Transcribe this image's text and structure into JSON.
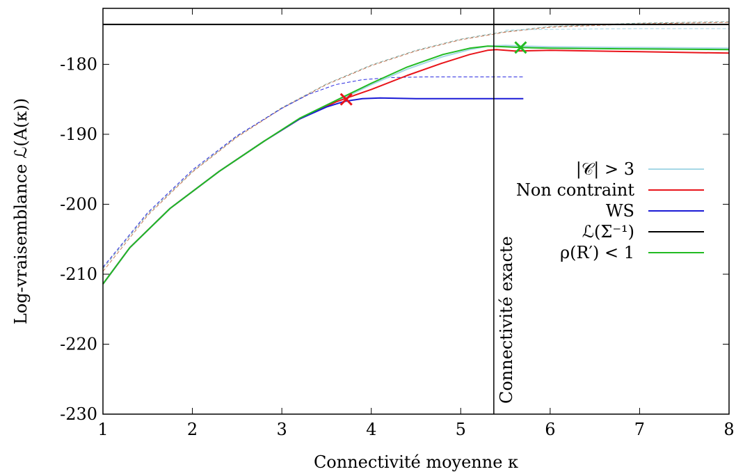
{
  "chart_data": {
    "type": "line",
    "xlabel": "Connectivité moyenne κ",
    "ylabel": "Log-vraisemblance ℒ(A(κ))",
    "xlim": [
      1,
      8
    ],
    "ylim": [
      -230,
      -172
    ],
    "xticks": [
      1,
      2,
      3,
      4,
      5,
      6,
      7,
      8
    ],
    "xtick_labels": [
      "1",
      "2",
      "3",
      "4",
      "5",
      "6",
      "7",
      "8"
    ],
    "yticks": [
      -230,
      -220,
      -210,
      -200,
      -190,
      -180
    ],
    "ytick_labels": [
      "-230",
      "-220",
      "-210",
      "-200",
      "-190",
      "-180"
    ],
    "vline": {
      "x": 5.37,
      "label": "Connectivité exacte"
    },
    "legend_position": "right",
    "series": [
      {
        "name": "|𝒞| > 3",
        "color": "#a6d7e6",
        "width": 2,
        "dash": false,
        "x": [
          1,
          1.3,
          1.75,
          2.3,
          2.8,
          3.2,
          3.6,
          4.0,
          4.4,
          4.8,
          5.1,
          5.3,
          5.5,
          5.7,
          6.0,
          7.0,
          8.0
        ],
        "y": [
          -211.4,
          -206.2,
          -200.6,
          -195.3,
          -191.0,
          -187.8,
          -185.4,
          -182.9,
          -180.7,
          -178.9,
          -177.9,
          -177.4,
          -177.3,
          -177.4,
          -177.5,
          -177.6,
          -177.7
        ]
      },
      {
        "name": "Non contraint",
        "color": "#e8141a",
        "width": 2,
        "dash": false,
        "x": [
          1,
          1.3,
          1.75,
          2.3,
          2.8,
          3.2,
          3.6,
          3.75,
          4.0,
          4.4,
          4.8,
          5.1,
          5.3,
          5.4,
          5.6,
          6.0,
          7.0,
          8.0
        ],
        "y": [
          -211.4,
          -206.2,
          -200.6,
          -195.3,
          -191.0,
          -187.8,
          -185.4,
          -184.7,
          -183.6,
          -181.6,
          -179.8,
          -178.6,
          -178.0,
          -177.9,
          -178.1,
          -178.0,
          -178.2,
          -178.4
        ]
      },
      {
        "name": "WS",
        "color": "#1a1ad6",
        "width": 2,
        "dash": false,
        "x": [
          1,
          1.3,
          1.75,
          2.3,
          2.8,
          3.2,
          3.5,
          3.7,
          3.9,
          4.1,
          4.5,
          5.0,
          5.7
        ],
        "y": [
          -211.4,
          -206.2,
          -200.6,
          -195.3,
          -191.0,
          -187.8,
          -186.1,
          -185.3,
          -184.9,
          -184.8,
          -184.9,
          -184.9,
          -184.9
        ]
      },
      {
        "name": "ℒ(Σ⁻¹)",
        "color": "#000000",
        "width": 2,
        "dash": false,
        "x": [
          1,
          8
        ],
        "y": [
          -174.3,
          -174.3
        ]
      },
      {
        "name": "ρ(R′) < 1",
        "color": "#22bb22",
        "width": 2,
        "dash": false,
        "x": [
          1,
          1.3,
          1.75,
          2.3,
          2.8,
          3.2,
          3.6,
          4.0,
          4.4,
          4.8,
          5.1,
          5.3,
          5.5,
          5.67,
          6.0,
          7.0,
          8.0
        ],
        "y": [
          -211.4,
          -206.2,
          -200.6,
          -195.3,
          -191.0,
          -187.7,
          -185.2,
          -182.7,
          -180.4,
          -178.6,
          -177.7,
          -177.4,
          -177.5,
          -177.6,
          -177.7,
          -177.8,
          -177.9
        ]
      },
      {
        "name": "",
        "color": "#7fa8a0",
        "width": 1,
        "dash": true,
        "x": [
          1,
          1.5,
          2,
          2.5,
          3,
          3.5,
          4,
          4.5,
          5,
          5.5,
          6,
          7,
          8
        ],
        "y": [
          -209.2,
          -201.4,
          -195.3,
          -190.3,
          -186.2,
          -182.8,
          -180.1,
          -178.0,
          -176.4,
          -175.3,
          -174.6,
          -174.1,
          -173.9
        ]
      },
      {
        "name": "",
        "color": "#c87a5a",
        "width": 1,
        "dash": true,
        "x": [
          1,
          1.5,
          2,
          2.5,
          3,
          3.5,
          4,
          4.5,
          5,
          5.5,
          6,
          7,
          8
        ],
        "y": [
          -209.6,
          -201.6,
          -195.4,
          -190.4,
          -186.3,
          -182.9,
          -180.2,
          -178.1,
          -176.5,
          -175.4,
          -174.7,
          -174.2,
          -174.0
        ]
      },
      {
        "name": "",
        "color": "#a6d7e6",
        "width": 1,
        "dash": true,
        "x": [
          5.5,
          6,
          7,
          8
        ],
        "y": [
          -175.1,
          -175.0,
          -174.9,
          -174.9
        ]
      },
      {
        "name": "",
        "color": "#2a2ae0",
        "width": 1,
        "dash": true,
        "x": [
          1,
          1.5,
          2,
          2.5,
          3,
          3.3,
          3.6,
          3.9,
          4.2,
          4.6,
          5.0,
          5.7
        ],
        "y": [
          -209.0,
          -201.2,
          -195.1,
          -190.2,
          -186.3,
          -184.3,
          -182.9,
          -182.2,
          -181.9,
          -181.8,
          -181.8,
          -181.8
        ]
      }
    ],
    "markers": [
      {
        "x": 3.72,
        "y": -185.0,
        "color": "#e8141a",
        "symbol": "×"
      },
      {
        "x": 5.67,
        "y": -177.6,
        "color": "#22bb22",
        "symbol": "×"
      }
    ]
  }
}
